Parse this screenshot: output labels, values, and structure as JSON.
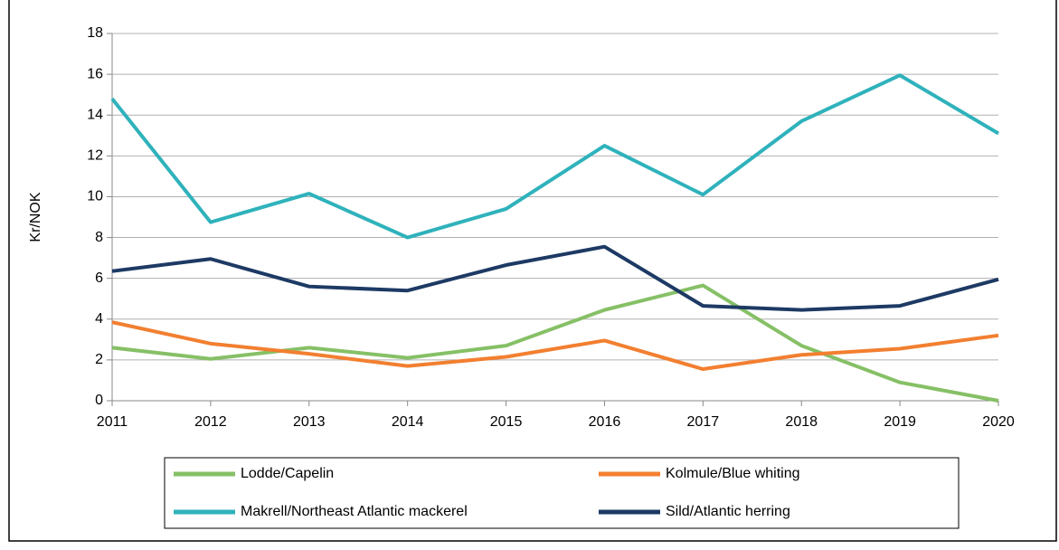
{
  "chart_data": {
    "type": "line",
    "y_label": "Kr/NOK",
    "categories": [
      "2011",
      "2012",
      "2013",
      "2014",
      "2015",
      "2016",
      "2017",
      "2018",
      "2019",
      "2020"
    ],
    "series": [
      {
        "name": "Lodde/Capelin",
        "color": "#86c066",
        "values": [
          2.6,
          2.05,
          2.6,
          2.1,
          2.7,
          4.45,
          5.65,
          2.7,
          0.9,
          0.0
        ]
      },
      {
        "name": "Kolmule/Blue whiting",
        "color": "#f27f30",
        "values": [
          3.85,
          2.8,
          2.3,
          1.7,
          2.15,
          2.95,
          1.55,
          2.25,
          2.55,
          3.2
        ]
      },
      {
        "name": "Makrell/Northeast Atlantic mackerel",
        "color": "#2fb2bb",
        "values": [
          14.8,
          8.75,
          10.15,
          8.0,
          9.4,
          12.5,
          10.1,
          13.7,
          15.95,
          13.1
        ]
      },
      {
        "name": "Sild/Atlantic herring",
        "color": "#1d3a64",
        "values": [
          6.35,
          6.95,
          5.6,
          5.4,
          6.65,
          7.55,
          4.65,
          4.45,
          4.65,
          5.95
        ]
      }
    ],
    "ylim": [
      0,
      18
    ],
    "yticks": [
      0,
      2,
      4,
      6,
      8,
      10,
      12,
      14,
      16,
      18
    ],
    "grid": true
  }
}
